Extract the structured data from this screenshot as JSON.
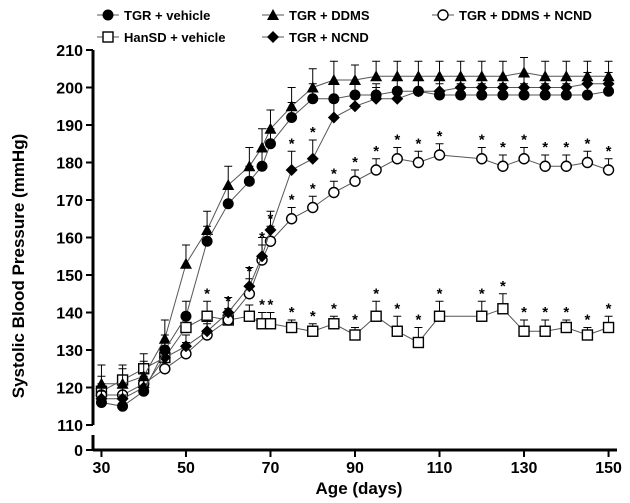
{
  "chart_data": {
    "type": "line",
    "xlabel": "Age (days)",
    "ylabel": "Systolic Blood Pressure (mmHg)",
    "xlim": [
      28,
      152
    ],
    "ylim": [
      110,
      210
    ],
    "y_axis_break": true,
    "y_axis_zero_label": "0",
    "xticks": [
      30,
      50,
      70,
      90,
      110,
      130,
      150
    ],
    "yticks": [
      110,
      120,
      130,
      140,
      150,
      160,
      170,
      180,
      190,
      200,
      210
    ],
    "legend_placement": "top",
    "grid": false,
    "significance_marker": "*",
    "series": [
      {
        "name": "TGR + vehicle",
        "marker": "filled-circle",
        "x": [
          30,
          35,
          40,
          45,
          50,
          55,
          60,
          65,
          68,
          70,
          75,
          80,
          85,
          90,
          95,
          100,
          105,
          110,
          115,
          120,
          125,
          130,
          135,
          140,
          145,
          150
        ],
        "y": [
          116,
          115,
          119,
          130,
          139,
          159,
          169,
          175,
          179,
          185,
          192,
          197,
          197,
          198,
          198,
          199,
          199,
          198,
          198,
          198,
          198,
          198,
          198,
          198,
          198,
          199
        ],
        "err": [
          3,
          3,
          3,
          4,
          4,
          4,
          4,
          4,
          4,
          4,
          4,
          4,
          4,
          3,
          3,
          3,
          3,
          3,
          3,
          3,
          3,
          3,
          3,
          3,
          3,
          3
        ]
      },
      {
        "name": "TGR + DDMS",
        "marker": "filled-triangle",
        "x": [
          30,
          35,
          40,
          45,
          50,
          55,
          60,
          65,
          68,
          70,
          75,
          80,
          85,
          90,
          95,
          100,
          105,
          110,
          115,
          120,
          125,
          130,
          135,
          140,
          145,
          150
        ],
        "y": [
          121,
          121,
          123,
          133,
          153,
          162,
          174,
          179,
          184,
          189,
          195,
          200,
          202,
          202,
          203,
          203,
          203,
          203,
          203,
          203,
          203,
          204,
          203,
          203,
          203,
          203
        ],
        "err": [
          5,
          4,
          4,
          5,
          5,
          5,
          5,
          5,
          5,
          5,
          5,
          5,
          5,
          4,
          4,
          4,
          4,
          4,
          4,
          4,
          4,
          4,
          4,
          4,
          4,
          4
        ]
      },
      {
        "name": "TGR + DDMS + NCND",
        "marker": "open-circle",
        "x": [
          30,
          35,
          40,
          45,
          50,
          55,
          60,
          65,
          68,
          70,
          75,
          80,
          85,
          90,
          95,
          100,
          105,
          110,
          120,
          125,
          130,
          135,
          140,
          145,
          150
        ],
        "y": [
          118,
          118,
          121,
          125,
          129,
          134,
          138,
          145,
          154,
          159,
          165,
          168,
          172,
          175,
          178,
          181,
          180,
          182,
          181,
          179,
          181,
          179,
          179,
          180,
          178
        ],
        "err": [
          3,
          3,
          3,
          3,
          3,
          3,
          3,
          4,
          4,
          4,
          3,
          3,
          3,
          3,
          3,
          3,
          3,
          3,
          3,
          3,
          3,
          3,
          3,
          3,
          3
        ],
        "significant": [
          false,
          false,
          false,
          false,
          false,
          false,
          false,
          true,
          true,
          true,
          true,
          true,
          true,
          true,
          true,
          true,
          true,
          true,
          true,
          true,
          true,
          true,
          true,
          true,
          true
        ]
      },
      {
        "name": "HanSD + vehicle",
        "marker": "open-square",
        "x": [
          30,
          35,
          40,
          45,
          50,
          55,
          60,
          65,
          68,
          70,
          75,
          80,
          85,
          90,
          95,
          100,
          105,
          110,
          120,
          125,
          130,
          135,
          140,
          145,
          150
        ],
        "y": [
          119,
          122,
          125,
          128,
          136,
          139,
          138,
          139,
          137,
          137,
          136,
          135,
          137,
          134,
          139,
          135,
          132,
          139,
          139,
          141,
          135,
          135,
          136,
          134,
          136
        ],
        "err": [
          4,
          4,
          4,
          4,
          4,
          4,
          3,
          3,
          3,
          3,
          2,
          2,
          2,
          2,
          4,
          4,
          4,
          4,
          4,
          4,
          3,
          3,
          2,
          2,
          3
        ],
        "significant": [
          false,
          false,
          false,
          false,
          false,
          true,
          true,
          true,
          true,
          true,
          true,
          true,
          true,
          true,
          true,
          true,
          true,
          true,
          true,
          true,
          true,
          true,
          true,
          true,
          true
        ]
      },
      {
        "name": "TGR + NCND",
        "marker": "filled-diamond",
        "x": [
          30,
          35,
          40,
          45,
          50,
          55,
          60,
          65,
          68,
          70,
          75,
          80,
          85,
          90,
          95,
          100,
          105,
          110,
          115,
          120,
          125,
          130,
          135,
          140,
          145,
          150
        ],
        "y": [
          117,
          117,
          120,
          128,
          131,
          135,
          140,
          147,
          155,
          162,
          178,
          181,
          192,
          195,
          197,
          197,
          199,
          199,
          200,
          200,
          200,
          200,
          200,
          200,
          201,
          201
        ],
        "err": [
          3,
          3,
          3,
          3,
          3,
          3,
          4,
          5,
          5,
          5,
          5,
          5,
          4,
          3,
          3,
          3,
          3,
          3,
          3,
          3,
          3,
          3,
          3,
          3,
          3,
          3
        ],
        "significant": [
          false,
          false,
          false,
          false,
          false,
          false,
          false,
          false,
          false,
          false,
          true,
          true,
          false,
          false,
          false,
          false,
          false,
          false,
          false,
          false,
          false,
          false,
          false,
          false,
          false,
          false
        ]
      }
    ]
  }
}
